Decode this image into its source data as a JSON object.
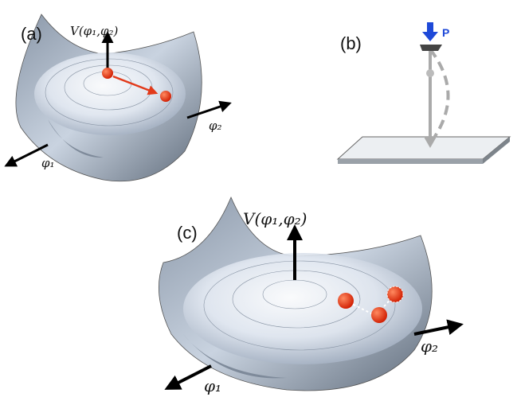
{
  "panels": [
    {
      "label": "(a)",
      "axis_v": "V(φ₁,φ₂)",
      "axis_x": "φ₂",
      "axis_y": "φ₁"
    },
    {
      "label": "(b)",
      "force": "P"
    },
    {
      "label": "(c)",
      "axis_v": "V(φ₁,φ₂)",
      "axis_x": "φ₂",
      "axis_y": "φ₁"
    }
  ]
}
